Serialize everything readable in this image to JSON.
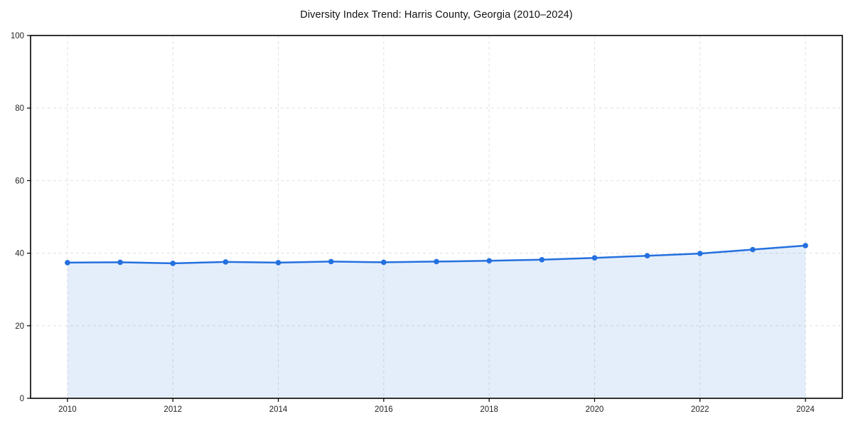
{
  "chart_data": {
    "type": "line",
    "subtype": "area-filled-line-with-markers",
    "title": "Diversity Index Trend: Harris County, Georgia (2010–2024)",
    "x": [
      2010,
      2011,
      2012,
      2013,
      2014,
      2015,
      2016,
      2017,
      2018,
      2019,
      2020,
      2021,
      2022,
      2023,
      2024
    ],
    "series": [
      {
        "name": "Diversity Index",
        "values": [
          37.4,
          37.5,
          37.2,
          37.6,
          37.4,
          37.7,
          37.5,
          37.7,
          37.9,
          38.2,
          38.7,
          39.3,
          39.9,
          41.0,
          42.1
        ]
      }
    ],
    "xticks": [
      2010,
      2012,
      2014,
      2016,
      2018,
      2020,
      2022,
      2024
    ],
    "yticks": [
      0,
      20,
      40,
      60,
      80,
      100
    ],
    "xlim": [
      2009.3,
      2024.7
    ],
    "ylim": [
      0,
      100
    ],
    "grid": "dashed-both-axes",
    "legend_position": "none",
    "xlabel": "",
    "ylabel": "",
    "colors": {
      "line": "#2470df",
      "marker": "#2470df",
      "fill": "#2470df",
      "fill_opacity": 0.12,
      "grid": "#e0e0e0",
      "axis": "#000000",
      "tick_text": "#222222",
      "title_text": "#111111",
      "background": "#ffffff"
    }
  }
}
